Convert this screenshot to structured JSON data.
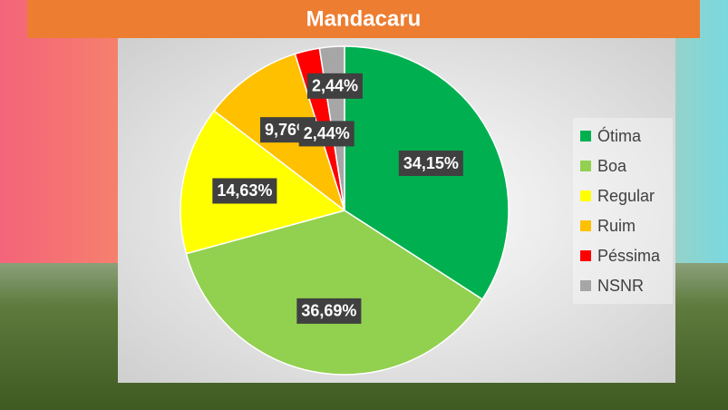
{
  "chart_data": {
    "type": "pie",
    "title": "Mandacaru",
    "categories": [
      "Ótima",
      "Boa",
      "Regular",
      "Ruim",
      "Péssima",
      "NSNR"
    ],
    "values": [
      34.15,
      36.69,
      14.63,
      9.76,
      2.44,
      2.44
    ],
    "value_labels": [
      "34,15%",
      "36,69%",
      "14,63%",
      "9,76%",
      "2,44%",
      "2,44%"
    ],
    "colors": [
      "#00b050",
      "#92d050",
      "#ffff00",
      "#ffc000",
      "#ff0000",
      "#a6a6a6"
    ],
    "legend": "right"
  }
}
